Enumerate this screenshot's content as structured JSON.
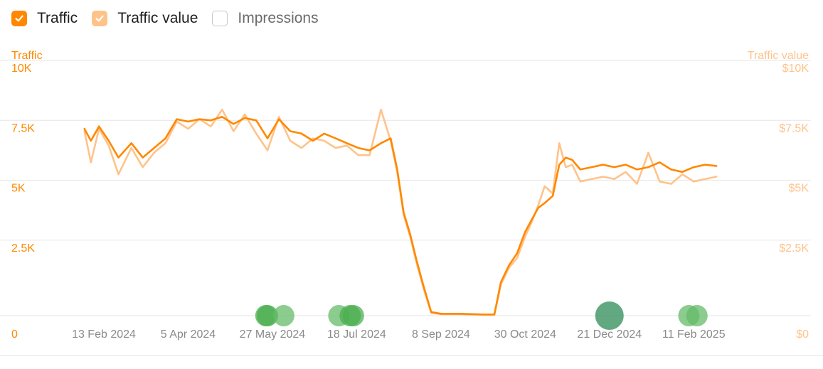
{
  "legend": {
    "traffic": {
      "label": "Traffic",
      "checked": true,
      "color": "#ff8800"
    },
    "traffic_value": {
      "label": "Traffic value",
      "checked": true,
      "color": "#ffc38a"
    },
    "impressions": {
      "label": "Impressions",
      "checked": false
    }
  },
  "chart_data": {
    "type": "line",
    "y_left": {
      "title": "Traffic",
      "min": 0,
      "max": 10000,
      "ticks": [
        {
          "value": 0,
          "label": "0"
        },
        {
          "value": 2500,
          "label": "2.5K"
        },
        {
          "value": 5000,
          "label": "5K"
        },
        {
          "value": 7500,
          "label": "7.5K"
        },
        {
          "value": 10000,
          "label": "10K"
        }
      ]
    },
    "y_right": {
      "title": "Traffic value",
      "min": 0,
      "max": 10000,
      "ticks": [
        {
          "value": 0,
          "label": "$0"
        },
        {
          "value": 2500,
          "label": "$2.5K"
        },
        {
          "value": 5000,
          "label": "$5K"
        },
        {
          "value": 7500,
          "label": "$7.5K"
        },
        {
          "value": 10000,
          "label": "$10K"
        }
      ]
    },
    "x_range": [
      "2024-01-26",
      "2025-03-18"
    ],
    "x_ticks": [
      {
        "date": "2024-02-13",
        "label": "13 Feb 2024"
      },
      {
        "date": "2024-04-05",
        "label": "5 Apr 2024"
      },
      {
        "date": "2024-05-27",
        "label": "27 May 2024"
      },
      {
        "date": "2024-07-18",
        "label": "18 Jul 2024"
      },
      {
        "date": "2024-09-08",
        "label": "8 Sep 2024"
      },
      {
        "date": "2024-10-30",
        "label": "30 Oct 2024"
      },
      {
        "date": "2024-12-21",
        "label": "21 Dec 2024"
      },
      {
        "date": "2025-02-11",
        "label": "11 Feb 2025"
      }
    ],
    "grid": true,
    "series": [
      {
        "name": "Traffic",
        "axis": "left",
        "color": "#ff8800",
        "points": [
          [
            "2024-02-01",
            7800
          ],
          [
            "2024-02-05",
            7300
          ],
          [
            "2024-02-10",
            7900
          ],
          [
            "2024-02-16",
            7300
          ],
          [
            "2024-02-22",
            6600
          ],
          [
            "2024-03-01",
            7200
          ],
          [
            "2024-03-08",
            6600
          ],
          [
            "2024-03-15",
            7000
          ],
          [
            "2024-03-22",
            7400
          ],
          [
            "2024-03-29",
            8200
          ],
          [
            "2024-04-05",
            8100
          ],
          [
            "2024-04-12",
            8200
          ],
          [
            "2024-04-19",
            8150
          ],
          [
            "2024-04-26",
            8300
          ],
          [
            "2024-05-03",
            8000
          ],
          [
            "2024-05-10",
            8250
          ],
          [
            "2024-05-17",
            8150
          ],
          [
            "2024-05-24",
            7400
          ],
          [
            "2024-05-31",
            8200
          ],
          [
            "2024-06-07",
            7700
          ],
          [
            "2024-06-14",
            7600
          ],
          [
            "2024-06-21",
            7300
          ],
          [
            "2024-06-28",
            7600
          ],
          [
            "2024-07-05",
            7400
          ],
          [
            "2024-07-12",
            7200
          ],
          [
            "2024-07-19",
            7000
          ],
          [
            "2024-07-26",
            6900
          ],
          [
            "2024-08-02",
            7200
          ],
          [
            "2024-08-08",
            7400
          ],
          [
            "2024-08-12",
            6100
          ],
          [
            "2024-08-16",
            4300
          ],
          [
            "2024-08-20",
            3400
          ],
          [
            "2024-08-24",
            2300
          ],
          [
            "2024-08-28",
            1300
          ],
          [
            "2024-09-02",
            150
          ],
          [
            "2024-09-08",
            80
          ],
          [
            "2024-09-20",
            80
          ],
          [
            "2024-10-04",
            50
          ],
          [
            "2024-10-11",
            50
          ],
          [
            "2024-10-15",
            1400
          ],
          [
            "2024-10-20",
            2100
          ],
          [
            "2024-10-25",
            2600
          ],
          [
            "2024-10-30",
            3500
          ],
          [
            "2024-11-03",
            4000
          ],
          [
            "2024-11-07",
            4500
          ],
          [
            "2024-11-11",
            4700
          ],
          [
            "2024-11-16",
            5000
          ],
          [
            "2024-11-20",
            6300
          ],
          [
            "2024-11-24",
            6600
          ],
          [
            "2024-11-28",
            6500
          ],
          [
            "2024-12-03",
            6100
          ],
          [
            "2024-12-10",
            6200
          ],
          [
            "2024-12-17",
            6300
          ],
          [
            "2024-12-24",
            6200
          ],
          [
            "2024-12-31",
            6300
          ],
          [
            "2025-01-07",
            6100
          ],
          [
            "2025-01-14",
            6200
          ],
          [
            "2025-01-21",
            6400
          ],
          [
            "2025-01-28",
            6100
          ],
          [
            "2025-02-04",
            6000
          ],
          [
            "2025-02-11",
            6200
          ],
          [
            "2025-02-18",
            6300
          ],
          [
            "2025-02-25",
            6250
          ]
        ]
      },
      {
        "name": "Traffic value",
        "axis": "right",
        "color": "#ffc38a",
        "points": [
          [
            "2024-02-01",
            7700
          ],
          [
            "2024-02-05",
            6400
          ],
          [
            "2024-02-10",
            7800
          ],
          [
            "2024-02-16",
            7100
          ],
          [
            "2024-02-22",
            5900
          ],
          [
            "2024-03-01",
            7000
          ],
          [
            "2024-03-08",
            6200
          ],
          [
            "2024-03-15",
            6800
          ],
          [
            "2024-03-22",
            7200
          ],
          [
            "2024-03-29",
            8100
          ],
          [
            "2024-04-05",
            7800
          ],
          [
            "2024-04-12",
            8200
          ],
          [
            "2024-04-19",
            7900
          ],
          [
            "2024-04-26",
            8600
          ],
          [
            "2024-05-03",
            7700
          ],
          [
            "2024-05-10",
            8400
          ],
          [
            "2024-05-17",
            7600
          ],
          [
            "2024-05-24",
            6900
          ],
          [
            "2024-05-31",
            8300
          ],
          [
            "2024-06-07",
            7300
          ],
          [
            "2024-06-14",
            7000
          ],
          [
            "2024-06-21",
            7400
          ],
          [
            "2024-06-28",
            7300
          ],
          [
            "2024-07-05",
            7000
          ],
          [
            "2024-07-12",
            7100
          ],
          [
            "2024-07-19",
            6700
          ],
          [
            "2024-07-26",
            6700
          ],
          [
            "2024-08-02",
            8600
          ],
          [
            "2024-08-08",
            7300
          ],
          [
            "2024-08-12",
            6000
          ],
          [
            "2024-08-16",
            4200
          ],
          [
            "2024-08-20",
            3300
          ],
          [
            "2024-08-24",
            2200
          ],
          [
            "2024-08-28",
            1200
          ],
          [
            "2024-09-02",
            120
          ],
          [
            "2024-09-08",
            60
          ],
          [
            "2024-09-20",
            60
          ],
          [
            "2024-10-04",
            40
          ],
          [
            "2024-10-11",
            40
          ],
          [
            "2024-10-15",
            1300
          ],
          [
            "2024-10-20",
            2000
          ],
          [
            "2024-10-25",
            2400
          ],
          [
            "2024-10-30",
            3300
          ],
          [
            "2024-11-03",
            3900
          ],
          [
            "2024-11-07",
            4600
          ],
          [
            "2024-11-11",
            5400
          ],
          [
            "2024-11-16",
            5100
          ],
          [
            "2024-11-20",
            7200
          ],
          [
            "2024-11-24",
            6200
          ],
          [
            "2024-11-28",
            6300
          ],
          [
            "2024-12-03",
            5600
          ],
          [
            "2024-12-10",
            5700
          ],
          [
            "2024-12-17",
            5800
          ],
          [
            "2024-12-24",
            5700
          ],
          [
            "2024-12-31",
            6000
          ],
          [
            "2025-01-07",
            5500
          ],
          [
            "2025-01-14",
            6800
          ],
          [
            "2025-01-21",
            5600
          ],
          [
            "2025-01-28",
            5500
          ],
          [
            "2025-02-04",
            5900
          ],
          [
            "2025-02-11",
            5600
          ],
          [
            "2025-02-18",
            5700
          ],
          [
            "2025-02-25",
            5800
          ]
        ]
      }
    ],
    "event_markers": [
      {
        "date": "2024-05-23",
        "size": "medium",
        "color": "#4caf50"
      },
      {
        "date": "2024-05-24",
        "size": "medium",
        "color": "#4caf50"
      },
      {
        "date": "2024-06-03",
        "size": "medium",
        "color": "#66bb6a"
      },
      {
        "date": "2024-07-07",
        "size": "medium",
        "color": "#66bb6a"
      },
      {
        "date": "2024-07-14",
        "size": "medium",
        "color": "#4caf50"
      },
      {
        "date": "2024-07-16",
        "size": "medium",
        "color": "#4caf50"
      },
      {
        "date": "2024-12-21",
        "size": "large",
        "color": "#2e8b57"
      },
      {
        "date": "2025-02-08",
        "size": "medium",
        "color": "#66bb6a"
      },
      {
        "date": "2025-02-13",
        "size": "medium",
        "color": "#66bb6a"
      }
    ]
  }
}
